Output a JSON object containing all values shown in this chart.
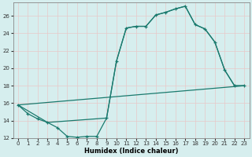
{
  "xlabel": "Humidex (Indice chaleur)",
  "bg_color": "#d6eeee",
  "line_color": "#1a7a6e",
  "grid_color": "#ffffff",
  "grid_minor_color": "#e8d8d8",
  "xlim": [
    -0.5,
    23.5
  ],
  "ylim": [
    12,
    27.5
  ],
  "xticks": [
    0,
    1,
    2,
    3,
    4,
    5,
    6,
    7,
    8,
    9,
    10,
    11,
    12,
    13,
    14,
    15,
    16,
    17,
    18,
    19,
    20,
    21,
    22,
    23
  ],
  "yticks": [
    12,
    14,
    16,
    18,
    20,
    22,
    24,
    26
  ],
  "line1_x": [
    0,
    1,
    2,
    3,
    4,
    5,
    6,
    7,
    8,
    9,
    10,
    11,
    12,
    13,
    14,
    15,
    16,
    17,
    18,
    19,
    20,
    21,
    22,
    23
  ],
  "line1_y": [
    15.8,
    14.8,
    14.2,
    13.8,
    13.2,
    12.2,
    12.1,
    12.2,
    12.2,
    14.3,
    20.8,
    24.6,
    24.8,
    24.8,
    26.1,
    26.4,
    26.8,
    27.1,
    25.0,
    24.5,
    23.0,
    19.8,
    18.0,
    18.0
  ],
  "line2_x": [
    0,
    23
  ],
  "line2_y": [
    15.8,
    18.0
  ],
  "line3_x": [
    0,
    3,
    9,
    10,
    11,
    12,
    13,
    14,
    15,
    16,
    17,
    18,
    19,
    20,
    21,
    22,
    23
  ],
  "line3_y": [
    15.8,
    13.8,
    14.3,
    20.8,
    24.6,
    24.8,
    24.8,
    26.1,
    26.4,
    26.8,
    27.1,
    25.0,
    24.5,
    23.0,
    19.8,
    18.0,
    18.0
  ]
}
